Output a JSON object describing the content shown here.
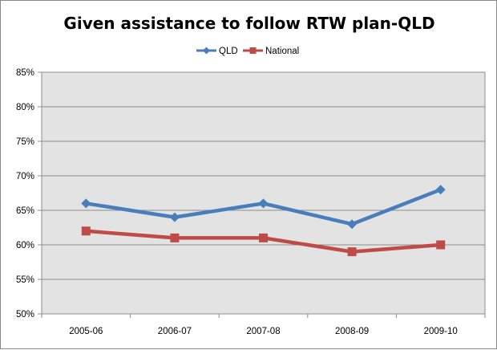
{
  "chart_data": {
    "type": "line",
    "title": "Given assistance to follow RTW plan-QLD",
    "categories": [
      "2005-06",
      "2006-07",
      "2007-08",
      "2008-09",
      "2009-10"
    ],
    "y_tick_labels": [
      "50%",
      "55%",
      "60%",
      "65%",
      "70%",
      "75%",
      "80%",
      "85%"
    ],
    "ylim": [
      50,
      85
    ],
    "y_unit": "%",
    "grid": true,
    "legend_position": "top",
    "series": [
      {
        "name": "QLD",
        "values": [
          66,
          64,
          66,
          63,
          68
        ],
        "color": "#4a7ebb",
        "marker": "diamond"
      },
      {
        "name": "National",
        "values": [
          62,
          61,
          61,
          59,
          60
        ],
        "color": "#be4b48",
        "marker": "square"
      }
    ]
  },
  "colors": {
    "plot_background": "#e3e3e3",
    "gridline": "#8c8c8c"
  }
}
